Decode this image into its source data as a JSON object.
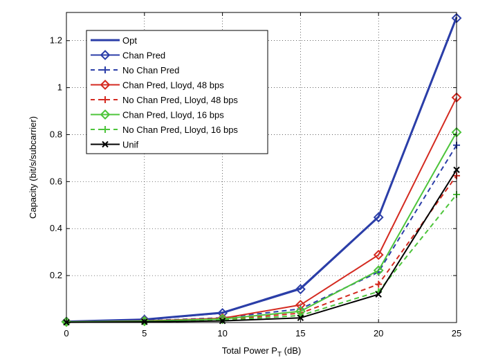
{
  "chart_data": {
    "type": "line",
    "xlabel_main": "Total Power P",
    "xlabel_sub": "T",
    "xlabel_unit": " (dB)",
    "ylabel": "Capacity (bit/s/subcarrier)",
    "x": [
      0,
      5,
      10,
      15,
      20,
      25
    ],
    "xlim": [
      0,
      25
    ],
    "ylim": [
      0,
      1.32
    ],
    "xticks": [
      0,
      5,
      10,
      15,
      20,
      25
    ],
    "yticks": [
      0.2,
      0.4,
      0.6,
      0.8,
      1,
      1.2
    ],
    "ytick_labels": [
      "0.2",
      "0.4",
      "0.6",
      "0.8",
      "1",
      "1.2"
    ],
    "grid": true,
    "legend_position": "top-left",
    "series": [
      {
        "name": "Opt",
        "color": "#2b3ea8",
        "dash": "solid",
        "marker": "none",
        "values": [
          0.004,
          0.013,
          0.042,
          0.145,
          0.45,
          1.3
        ]
      },
      {
        "name": "Chan Pred",
        "color": "#2b3ea8",
        "dash": "solid",
        "marker": "diamond",
        "values": [
          0.004,
          0.012,
          0.04,
          0.142,
          0.448,
          1.296
        ]
      },
      {
        "name": "No Chan Pred",
        "color": "#2b3ea8",
        "dash": "dashed",
        "marker": "plus",
        "values": [
          0.003,
          0.008,
          0.02,
          0.058,
          0.215,
          0.755
        ]
      },
      {
        "name": "Chan Pred, Lloyd, 48 bps",
        "color": "#d42a20",
        "dash": "solid",
        "marker": "diamond",
        "values": [
          0.003,
          0.007,
          0.018,
          0.075,
          0.288,
          0.958
        ]
      },
      {
        "name": "No Chan Pred, Lloyd, 48 bps",
        "color": "#d42a20",
        "dash": "dashed",
        "marker": "plus",
        "values": [
          0.002,
          0.005,
          0.012,
          0.04,
          0.163,
          0.625
        ]
      },
      {
        "name": "Chan Pred, Lloyd, 16 bps",
        "color": "#4cc43a",
        "dash": "solid",
        "marker": "diamond",
        "values": [
          0.003,
          0.006,
          0.015,
          0.048,
          0.222,
          0.81
        ]
      },
      {
        "name": "No Chan Pred, Lloyd, 16 bps",
        "color": "#4cc43a",
        "dash": "dashed",
        "marker": "plus",
        "values": [
          0.002,
          0.004,
          0.01,
          0.03,
          0.132,
          0.545
        ]
      },
      {
        "name": "Unif",
        "color": "#000000",
        "dash": "solid",
        "marker": "x",
        "values": [
          0.001,
          0.003,
          0.007,
          0.02,
          0.12,
          0.65
        ]
      }
    ]
  }
}
